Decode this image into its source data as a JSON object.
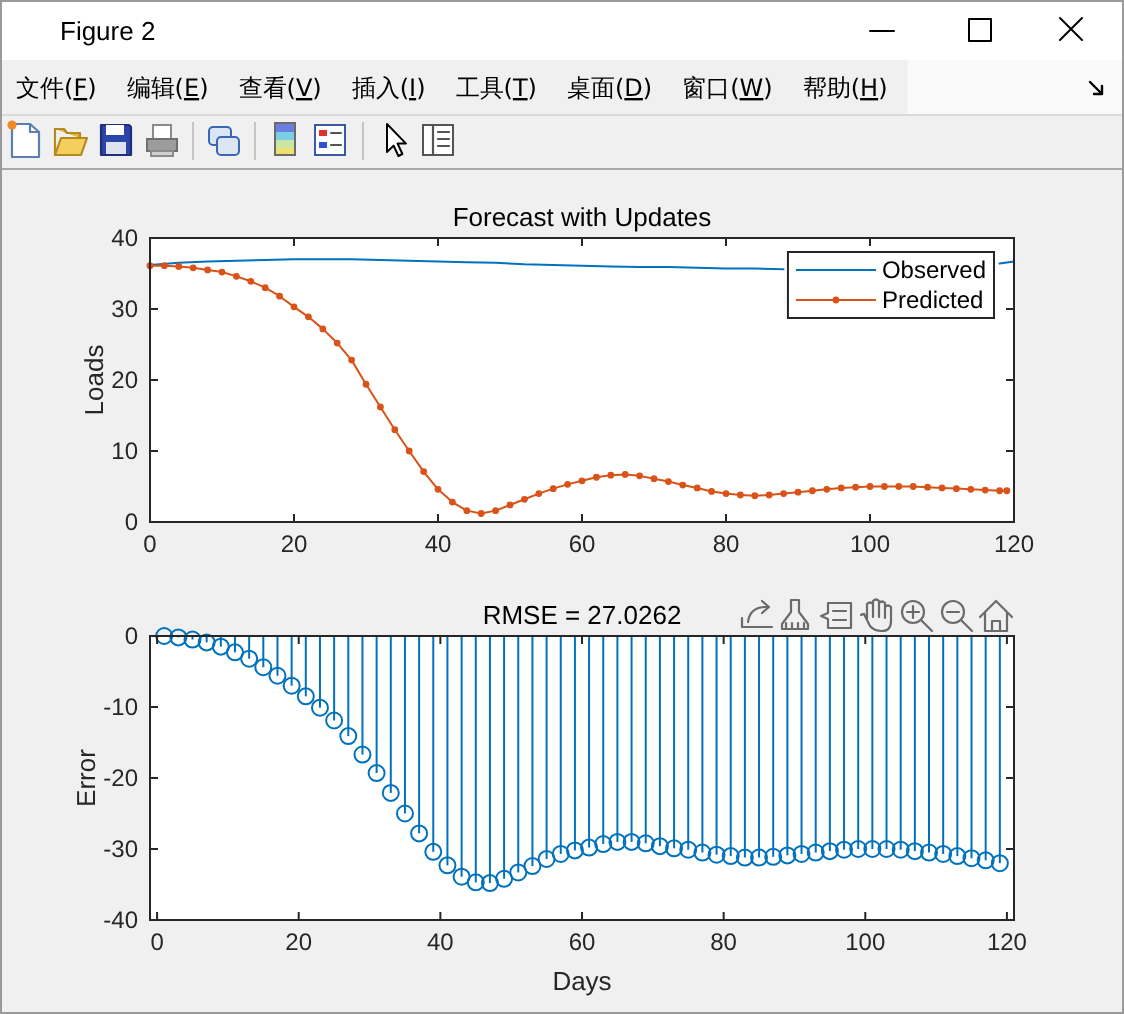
{
  "chart_data": [
    {
      "type": "other",
      "title": "Figure 2",
      "annotations": [
        "文件(F)",
        "编辑(E)",
        "查看(V)",
        "插入(I)",
        "工具(T)",
        "桌面(D)",
        "窗口(W)",
        "帮助(H)"
      ]
    },
    {
      "type": "line",
      "title": "Forecast with Updates",
      "ylabel": "Loads",
      "xlim": [
        0,
        120
      ],
      "ylim": [
        0,
        40
      ],
      "xticks": [
        0,
        20,
        40,
        60,
        80,
        100,
        120
      ],
      "yticks": [
        0,
        10,
        20,
        30,
        40
      ],
      "legend": "top right",
      "series": [
        {
          "name": "Observed",
          "color": "#0072bd",
          "marker": "none",
          "x": [
            0,
            4,
            8,
            12,
            16,
            20,
            24,
            28,
            32,
            36,
            40,
            44,
            48,
            52,
            56,
            60,
            64,
            68,
            72,
            76,
            80,
            84,
            88,
            104,
            118,
            120
          ],
          "values": [
            36.2,
            36.5,
            36.7,
            36.8,
            36.9,
            37.0,
            37.0,
            37.0,
            36.9,
            36.8,
            36.7,
            36.6,
            36.5,
            36.3,
            36.2,
            36.1,
            36.0,
            35.9,
            35.9,
            35.8,
            35.7,
            35.7,
            35.6,
            null,
            36.4,
            36.7
          ]
        },
        {
          "name": "Predicted",
          "color": "#d95319",
          "marker": "circle",
          "x": [
            0,
            2,
            4,
            6,
            8,
            10,
            12,
            14,
            16,
            18,
            20,
            22,
            24,
            26,
            28,
            30,
            32,
            34,
            36,
            38,
            40,
            42,
            44,
            46,
            48,
            50,
            52,
            54,
            56,
            58,
            60,
            62,
            64,
            66,
            68,
            70,
            72,
            74,
            76,
            78,
            80,
            82,
            84,
            86,
            88,
            90,
            92,
            94,
            96,
            98,
            100,
            102,
            104,
            106,
            108,
            110,
            112,
            114,
            116,
            118,
            119
          ],
          "values": [
            36.1,
            36.1,
            36.0,
            35.8,
            35.5,
            35.2,
            34.6,
            33.9,
            33.0,
            31.8,
            30.3,
            28.9,
            27.2,
            25.2,
            22.8,
            19.4,
            16.2,
            13.0,
            10.0,
            7.1,
            4.6,
            2.8,
            1.6,
            1.2,
            1.6,
            2.4,
            3.2,
            4.0,
            4.7,
            5.3,
            5.8,
            6.3,
            6.6,
            6.7,
            6.5,
            6.1,
            5.7,
            5.2,
            4.8,
            4.3,
            4.0,
            3.8,
            3.7,
            3.8,
            4.0,
            4.2,
            4.4,
            4.6,
            4.8,
            4.9,
            5.0,
            5.0,
            5.0,
            5.0,
            4.9,
            4.8,
            4.7,
            4.6,
            4.5,
            4.4,
            4.4
          ]
        }
      ]
    },
    {
      "type": "lollipop",
      "title": "RMSE = 27.0262",
      "xlabel": "Days",
      "ylabel": "Error",
      "xlim": [
        -1,
        121
      ],
      "ylim": [
        -40,
        0
      ],
      "xticks": [
        0,
        20,
        40,
        60,
        80,
        100,
        120
      ],
      "yticks": [
        -40,
        -30,
        -20,
        -10,
        0
      ],
      "marker": "circle",
      "series": [
        {
          "color": "#0072bd",
          "x": [
            1,
            3,
            5,
            7,
            9,
            11,
            13,
            15,
            17,
            19,
            21,
            23,
            25,
            27,
            29,
            31,
            33,
            35,
            37,
            39,
            41,
            43,
            45,
            47,
            49,
            51,
            53,
            55,
            57,
            59,
            61,
            63,
            65,
            67,
            69,
            71,
            73,
            75,
            77,
            79,
            81,
            83,
            85,
            87,
            89,
            91,
            93,
            95,
            97,
            99,
            101,
            103,
            105,
            107,
            109,
            111,
            113,
            115,
            117,
            119
          ],
          "values": [
            0,
            -0.2,
            -0.5,
            -0.9,
            -1.5,
            -2.3,
            -3.2,
            -4.4,
            -5.6,
            -7.0,
            -8.5,
            -10.1,
            -11.9,
            -14.1,
            -16.7,
            -19.3,
            -22.1,
            -25.0,
            -27.8,
            -30.4,
            -32.3,
            -33.9,
            -34.7,
            -34.8,
            -34.2,
            -33.3,
            -32.4,
            -31.4,
            -30.7,
            -30.2,
            -29.8,
            -29.3,
            -29.0,
            -29.0,
            -29.2,
            -29.6,
            -29.9,
            -30.1,
            -30.5,
            -30.8,
            -31.0,
            -31.2,
            -31.2,
            -31.1,
            -30.9,
            -30.7,
            -30.5,
            -30.3,
            -30.1,
            -30.0,
            -30.0,
            -30.0,
            -30.1,
            -30.3,
            -30.5,
            -30.7,
            -31.0,
            -31.3,
            -31.6,
            -32.0
          ]
        }
      ]
    }
  ]
}
